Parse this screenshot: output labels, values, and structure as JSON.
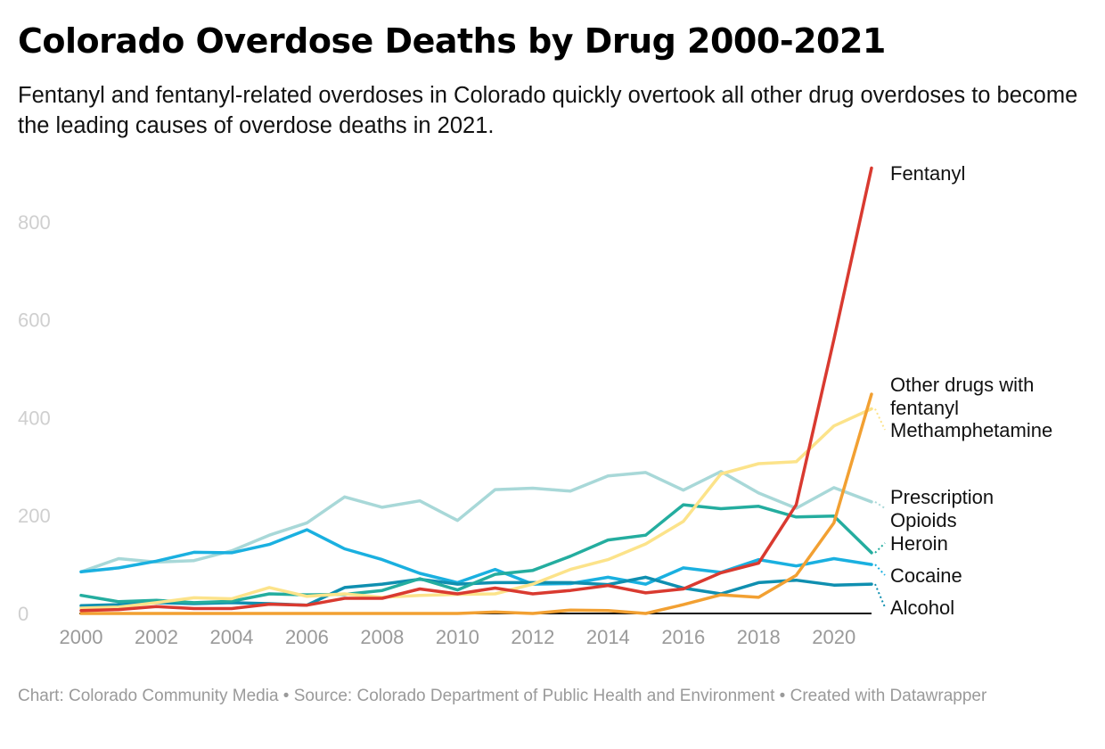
{
  "header": {
    "title": "Colorado Overdose Deaths by Drug 2000-2021",
    "subtitle": "Fentanyl and fentanyl-related overdoses in Colorado quickly overtook all other drug overdoses to become the leading causes of overdose deaths in 2021."
  },
  "footer": {
    "text": "Chart: Colorado Community Media • Source: Colorado Department of Public Health and Environment • Created with Datawrapper"
  },
  "chart_data": {
    "type": "line",
    "title": "Colorado Overdose Deaths by Drug 2000-2021",
    "subtitle": "Fentanyl and fentanyl-related overdoses in Colorado quickly overtook all other drug overdoses to become the leading causes of overdose deaths in 2021.",
    "xlabel": "",
    "ylabel": "",
    "x": [
      2000,
      2001,
      2002,
      2003,
      2004,
      2005,
      2006,
      2007,
      2008,
      2009,
      2010,
      2011,
      2012,
      2013,
      2014,
      2015,
      2016,
      2017,
      2018,
      2019,
      2020,
      2021
    ],
    "xlim": [
      2000,
      2021
    ],
    "ylim": [
      0,
      900
    ],
    "x_ticks": [
      "2000",
      "2002",
      "2004",
      "2006",
      "2008",
      "2010",
      "2012",
      "2014",
      "2016",
      "2018",
      "2020"
    ],
    "y_ticks": [
      "0",
      "200",
      "400",
      "600",
      "800"
    ],
    "grid": false,
    "legend": "direct labels at line ends (right)",
    "series": [
      {
        "name": "Prescription Opioids",
        "color": "#a8d8d8",
        "values": [
          85,
          112,
          105,
          108,
          128,
          160,
          185,
          238,
          217,
          230,
          190,
          253,
          256,
          250,
          281,
          288,
          252,
          290,
          246,
          215,
          257,
          228
        ]
      },
      {
        "name": "Cocaine",
        "color": "#1ab0e0",
        "values": [
          85,
          93,
          107,
          125,
          124,
          141,
          171,
          132,
          110,
          82,
          63,
          90,
          60,
          61,
          74,
          60,
          93,
          84,
          110,
          97,
          112,
          100
        ]
      },
      {
        "name": "Alcohol",
        "color": "#0f8fb0",
        "values": [
          16,
          18,
          22,
          20,
          22,
          20,
          17,
          53,
          60,
          70,
          60,
          63,
          63,
          63,
          59,
          74,
          52,
          40,
          63,
          68,
          58,
          60
        ]
      },
      {
        "name": "Heroin",
        "color": "#24ad9f",
        "values": [
          37,
          24,
          27,
          22,
          25,
          40,
          38,
          39,
          47,
          71,
          48,
          80,
          88,
          117,
          150,
          160,
          222,
          214,
          219,
          197,
          199,
          124
        ]
      },
      {
        "name": "Methamphetamine",
        "color": "#fce38a",
        "values": [
          11,
          13,
          22,
          32,
          30,
          53,
          35,
          40,
          33,
          37,
          39,
          40,
          60,
          90,
          110,
          142,
          188,
          285,
          306,
          310,
          383,
          418
        ]
      },
      {
        "name": "Other drugs with fentanyl",
        "color": "#f2a032",
        "values": [
          0,
          0,
          0,
          0,
          0,
          0,
          0,
          0,
          0,
          0,
          0,
          3,
          0,
          7,
          6,
          0,
          18,
          38,
          33,
          78,
          185,
          448
        ]
      },
      {
        "name": "Fentanyl",
        "color": "#d93a30",
        "values": [
          6,
          8,
          14,
          10,
          10,
          19,
          17,
          31,
          31,
          50,
          40,
          52,
          40,
          47,
          57,
          42,
          50,
          83,
          103,
          222,
          560,
          910
        ]
      }
    ],
    "labels": [
      {
        "series": "Fentanyl",
        "lines": [
          "Fentanyl"
        ]
      },
      {
        "series": "Other drugs with fentanyl",
        "lines": [
          "Other drugs with",
          "fentanyl"
        ]
      },
      {
        "series": "Methamphetamine",
        "lines": [
          "Methamphetamine"
        ]
      },
      {
        "series": "Prescription Opioids",
        "lines": [
          "Prescription",
          "Opioids"
        ]
      },
      {
        "series": "Heroin",
        "lines": [
          "Heroin"
        ]
      },
      {
        "series": "Cocaine",
        "lines": [
          "Cocaine"
        ]
      },
      {
        "series": "Alcohol",
        "lines": [
          "Alcohol"
        ]
      }
    ]
  }
}
